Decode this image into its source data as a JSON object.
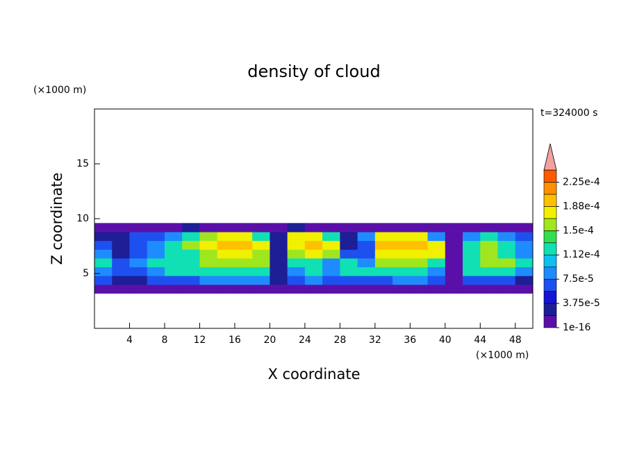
{
  "chart_data": {
    "type": "contour",
    "title": "density of cloud",
    "x_label": "X coordinate",
    "y_label": "Z coordinate",
    "x_unit": "(×1000 m)",
    "y_unit": "(×1000 m)",
    "time_label": "t=324000 s",
    "xlim": [
      0,
      50
    ],
    "xticks": [
      4,
      8,
      12,
      16,
      20,
      24,
      28,
      32,
      36,
      40,
      44,
      48
    ],
    "ylim": [
      0,
      20
    ],
    "yticks": [
      5,
      10,
      15
    ],
    "x": [
      1,
      3,
      5,
      7,
      9,
      11,
      13,
      15,
      17,
      19,
      21,
      23,
      25,
      27,
      29,
      31,
      33,
      35,
      37,
      39,
      41,
      43,
      45,
      47,
      49
    ],
    "y": [
      3.6,
      4.4,
      5.2,
      6.0,
      6.8,
      7.6,
      8.4,
      9.2
    ],
    "values": [
      [
        1e-05,
        1e-05,
        1e-05,
        1e-05,
        1e-05,
        1e-05,
        1e-05,
        1e-05,
        1e-05,
        1e-05,
        1e-05,
        1e-05,
        1e-05,
        1e-05,
        1e-05,
        1e-05,
        1e-05,
        1e-05,
        1e-05,
        1e-05,
        1e-05,
        1e-05,
        1e-05,
        1e-05,
        1e-05
      ],
      [
        6e-05,
        3e-05,
        3e-05,
        6e-05,
        6e-05,
        6e-05,
        9e-05,
        9e-05,
        9e-05,
        9e-05,
        3e-05,
        6e-05,
        9e-05,
        6e-05,
        6e-05,
        6e-05,
        6e-05,
        9e-05,
        9e-05,
        6e-05,
        1e-05,
        6e-05,
        6e-05,
        6e-05,
        3e-05
      ],
      [
        9e-05,
        6e-05,
        6e-05,
        9e-05,
        0.00012,
        0.00012,
        0.00012,
        0.00012,
        0.00012,
        0.00012,
        3e-05,
        9e-05,
        0.00012,
        9e-05,
        0.00012,
        0.00012,
        0.00012,
        0.00012,
        0.00012,
        9e-05,
        1e-05,
        0.00012,
        0.00012,
        0.00012,
        9e-05
      ],
      [
        0.00012,
        6e-05,
        9e-05,
        0.00012,
        0.00012,
        0.00012,
        0.00015,
        0.00015,
        0.00015,
        0.00015,
        3e-05,
        0.00012,
        0.00012,
        9e-05,
        0.00012,
        9e-05,
        0.00015,
        0.00015,
        0.00015,
        0.00012,
        1e-05,
        0.00012,
        0.00015,
        0.00015,
        0.00012
      ],
      [
        9e-05,
        3e-05,
        6e-05,
        9e-05,
        0.00012,
        0.00012,
        0.00015,
        0.00018,
        0.00018,
        0.00015,
        3e-05,
        0.00015,
        0.00018,
        0.00015,
        6e-05,
        6e-05,
        0.00018,
        0.00018,
        0.00018,
        0.00018,
        1e-05,
        0.00012,
        0.00015,
        0.00012,
        9e-05
      ],
      [
        6e-05,
        3e-05,
        6e-05,
        9e-05,
        0.00012,
        0.00015,
        0.00018,
        0.0002,
        0.0002,
        0.00018,
        3e-05,
        0.00018,
        0.0002,
        0.00018,
        3e-05,
        6e-05,
        0.0002,
        0.0002,
        0.0002,
        0.00018,
        1e-05,
        0.00012,
        0.00015,
        0.00012,
        9e-05
      ],
      [
        3e-05,
        3e-05,
        6e-05,
        6e-05,
        9e-05,
        0.00012,
        0.00015,
        0.00018,
        0.00018,
        0.00012,
        3e-05,
        0.00018,
        0.00018,
        0.00012,
        3e-05,
        9e-05,
        0.00018,
        0.00018,
        0.00018,
        9e-05,
        1e-05,
        9e-05,
        0.00012,
        9e-05,
        6e-05
      ],
      [
        1e-05,
        1e-05,
        1e-05,
        1e-05,
        1e-05,
        3e-05,
        1e-05,
        1e-05,
        1e-05,
        1e-05,
        1e-05,
        3e-05,
        1e-05,
        1e-05,
        1e-05,
        1e-05,
        1e-05,
        1e-05,
        1e-05,
        1e-05,
        1e-05,
        1e-05,
        1e-05,
        1e-05,
        1e-05
      ]
    ],
    "levels": [
      1e-16,
      1.875e-05,
      3.75e-05,
      5.625e-05,
      7.5e-05,
      9.375e-05,
      0.0001125,
      0.00013125,
      0.00015,
      0.00016875,
      0.0001875,
      0.00020625,
      0.000225,
      0.00024375
    ],
    "colors": [
      "#5a10a8",
      "#1e1e96",
      "#1414d2",
      "#1e50f0",
      "#1e8cff",
      "#10c0f0",
      "#10e0b4",
      "#30e050",
      "#a0e61e",
      "#f0f000",
      "#ffc000",
      "#ff9000",
      "#ff5a00"
    ],
    "extend_color": "#f4a0a0",
    "colorbar_ticks": [
      {
        "value": 1e-16,
        "label": "1e-16"
      },
      {
        "value": 3.75e-05,
        "label": "3.75e-5"
      },
      {
        "value": 7.5e-05,
        "label": "7.5e-5"
      },
      {
        "value": 0.0001125,
        "label": "1.12e-4"
      },
      {
        "value": 0.00015,
        "label": "1.5e-4"
      },
      {
        "value": 0.0001875,
        "label": "1.88e-4"
      },
      {
        "value": 0.000225,
        "label": "2.25e-4"
      }
    ]
  }
}
